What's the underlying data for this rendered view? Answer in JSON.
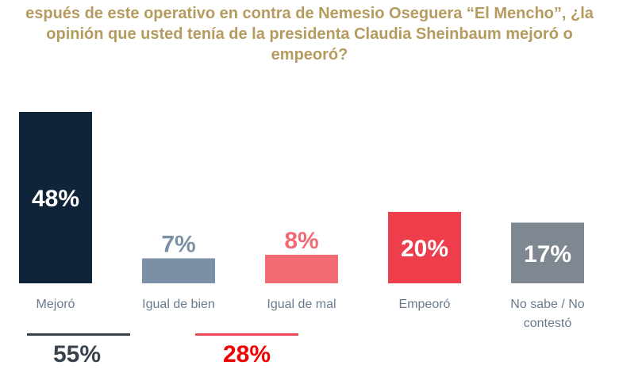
{
  "title_lines": [
    "espués de este operativo en contra de Nemesio Oseguera “El Mencho”, ¿la",
    "opinión que usted tenía de la presidenta Claudia Sheinbaum mejoró o",
    "empeoró?"
  ],
  "chart_data": {
    "type": "bar",
    "title": "espués de este operativo en contra de Nemesio Oseguera “El Mencho”, ¿la opinión que usted tenía de la presidenta Claudia Sheinbaum mejoró o empeoró?",
    "categories": [
      "Mejoró",
      "Igual de bien",
      "Igual de mal",
      "Empeoró",
      "No sabe / No contestó"
    ],
    "category_lines": [
      [
        "Mejoró"
      ],
      [
        "Igual de bien"
      ],
      [
        "Igual de mal"
      ],
      [
        "Empeoró"
      ],
      [
        "No sabe / No",
        "contestó"
      ]
    ],
    "values": [
      48,
      7,
      8,
      20,
      17
    ],
    "labels": [
      "48%",
      "7%",
      "8%",
      "20%",
      "17%"
    ],
    "colors": [
      "#0f2438",
      "#7b8fa6",
      "#f26b73",
      "#ee3e4b",
      "#7f8890"
    ],
    "label_inside": [
      true,
      false,
      false,
      true,
      true
    ],
    "ylim": [
      0,
      50
    ],
    "grid": false,
    "groups": [
      {
        "label": "55%",
        "color": "#37424d",
        "line_color": "#37424d"
      },
      {
        "label": "28%",
        "color": "#f00000",
        "line_color": "#ee4a55"
      }
    ]
  }
}
